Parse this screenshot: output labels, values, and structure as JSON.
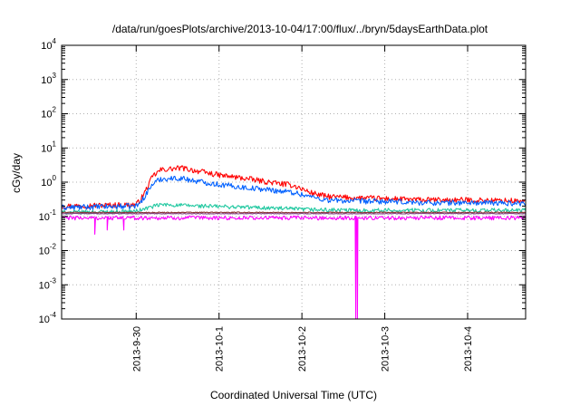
{
  "chart_data": {
    "type": "line",
    "title": "/data/run/goesPlots/archive/2013-10-04/17:00/flux/../bryn/5daysEarthData.plot",
    "xlabel": "Coordinated Universal Time (UTC)",
    "ylabel": "cGy/day",
    "y_scale": "log",
    "ylim": [
      0.0001,
      10000
    ],
    "xlim": [
      -0.9,
      4.7
    ],
    "x_unit": "days since 2013-9-30 00:00 UTC",
    "y_ticks": [
      {
        "value": 0.0001,
        "base": "10",
        "exp": "-4"
      },
      {
        "value": 0.001,
        "base": "10",
        "exp": "-3"
      },
      {
        "value": 0.01,
        "base": "10",
        "exp": "-2"
      },
      {
        "value": 0.1,
        "base": "10",
        "exp": "-1"
      },
      {
        "value": 1,
        "base": "10",
        "exp": "0"
      },
      {
        "value": 10,
        "base": "10",
        "exp": "1"
      },
      {
        "value": 100,
        "base": "10",
        "exp": "2"
      },
      {
        "value": 1000,
        "base": "10",
        "exp": "3"
      },
      {
        "value": 10000,
        "base": "10",
        "exp": "4"
      }
    ],
    "x_ticks": [
      {
        "value": 0,
        "label": "2013-9-30"
      },
      {
        "value": 1,
        "label": "2013-10-1"
      },
      {
        "value": 2,
        "label": "2013-10-2"
      },
      {
        "value": 3,
        "label": "2013-10-3"
      },
      {
        "value": 4,
        "label": "2013-10-4"
      }
    ],
    "grid": true,
    "series": [
      {
        "color": "#ff0000",
        "noise": 0.08,
        "points": [
          [
            -0.9,
            0.2
          ],
          [
            0.0,
            0.22
          ],
          [
            0.05,
            0.3
          ],
          [
            0.12,
            0.6
          ],
          [
            0.2,
            1.5
          ],
          [
            0.3,
            2.3
          ],
          [
            0.55,
            2.6
          ],
          [
            0.7,
            2.2
          ],
          [
            1.0,
            1.6
          ],
          [
            1.3,
            1.3
          ],
          [
            1.6,
            1.0
          ],
          [
            1.9,
            0.8
          ],
          [
            2.1,
            0.5
          ],
          [
            2.3,
            0.38
          ],
          [
            2.6,
            0.35
          ],
          [
            3.0,
            0.33
          ],
          [
            3.5,
            0.3
          ],
          [
            4.0,
            0.3
          ],
          [
            4.7,
            0.28
          ]
        ]
      },
      {
        "color": "#0060ff",
        "noise": 0.08,
        "points": [
          [
            -0.9,
            0.18
          ],
          [
            0.0,
            0.2
          ],
          [
            0.05,
            0.25
          ],
          [
            0.12,
            0.45
          ],
          [
            0.2,
            0.9
          ],
          [
            0.3,
            1.25
          ],
          [
            0.55,
            1.3
          ],
          [
            0.7,
            1.1
          ],
          [
            1.0,
            0.85
          ],
          [
            1.3,
            0.7
          ],
          [
            1.6,
            0.6
          ],
          [
            1.9,
            0.5
          ],
          [
            2.1,
            0.38
          ],
          [
            2.3,
            0.3
          ],
          [
            2.6,
            0.28
          ],
          [
            3.0,
            0.27
          ],
          [
            3.5,
            0.25
          ],
          [
            4.0,
            0.25
          ],
          [
            4.7,
            0.24
          ]
        ]
      },
      {
        "color": "#20c8a0",
        "noise": 0.06,
        "points": [
          [
            -0.9,
            0.13
          ],
          [
            0.0,
            0.14
          ],
          [
            0.15,
            0.18
          ],
          [
            0.3,
            0.22
          ],
          [
            0.8,
            0.2
          ],
          [
            1.5,
            0.18
          ],
          [
            2.0,
            0.16
          ],
          [
            2.5,
            0.15
          ],
          [
            3.0,
            0.15
          ],
          [
            4.0,
            0.15
          ],
          [
            4.7,
            0.15
          ]
        ]
      },
      {
        "color": "#8a3030",
        "noise": 0.015,
        "points": [
          [
            -0.9,
            0.13
          ],
          [
            4.7,
            0.13
          ]
        ]
      },
      {
        "color": "#804080",
        "noise": 0.01,
        "points": [
          [
            -0.9,
            0.12
          ],
          [
            4.7,
            0.12
          ]
        ]
      },
      {
        "color": "#ff00ff",
        "noise": 0.06,
        "points": [
          [
            -0.9,
            0.09
          ],
          [
            4.7,
            0.09
          ]
        ],
        "dips": [
          {
            "x": -0.5,
            "y": 0.03
          },
          {
            "x": -0.35,
            "y": 0.04
          },
          {
            "x": -0.15,
            "y": 0.04
          },
          {
            "x": 2.65,
            "y": 0.0001
          },
          {
            "x": 2.67,
            "y": 0.0001
          }
        ]
      }
    ]
  }
}
